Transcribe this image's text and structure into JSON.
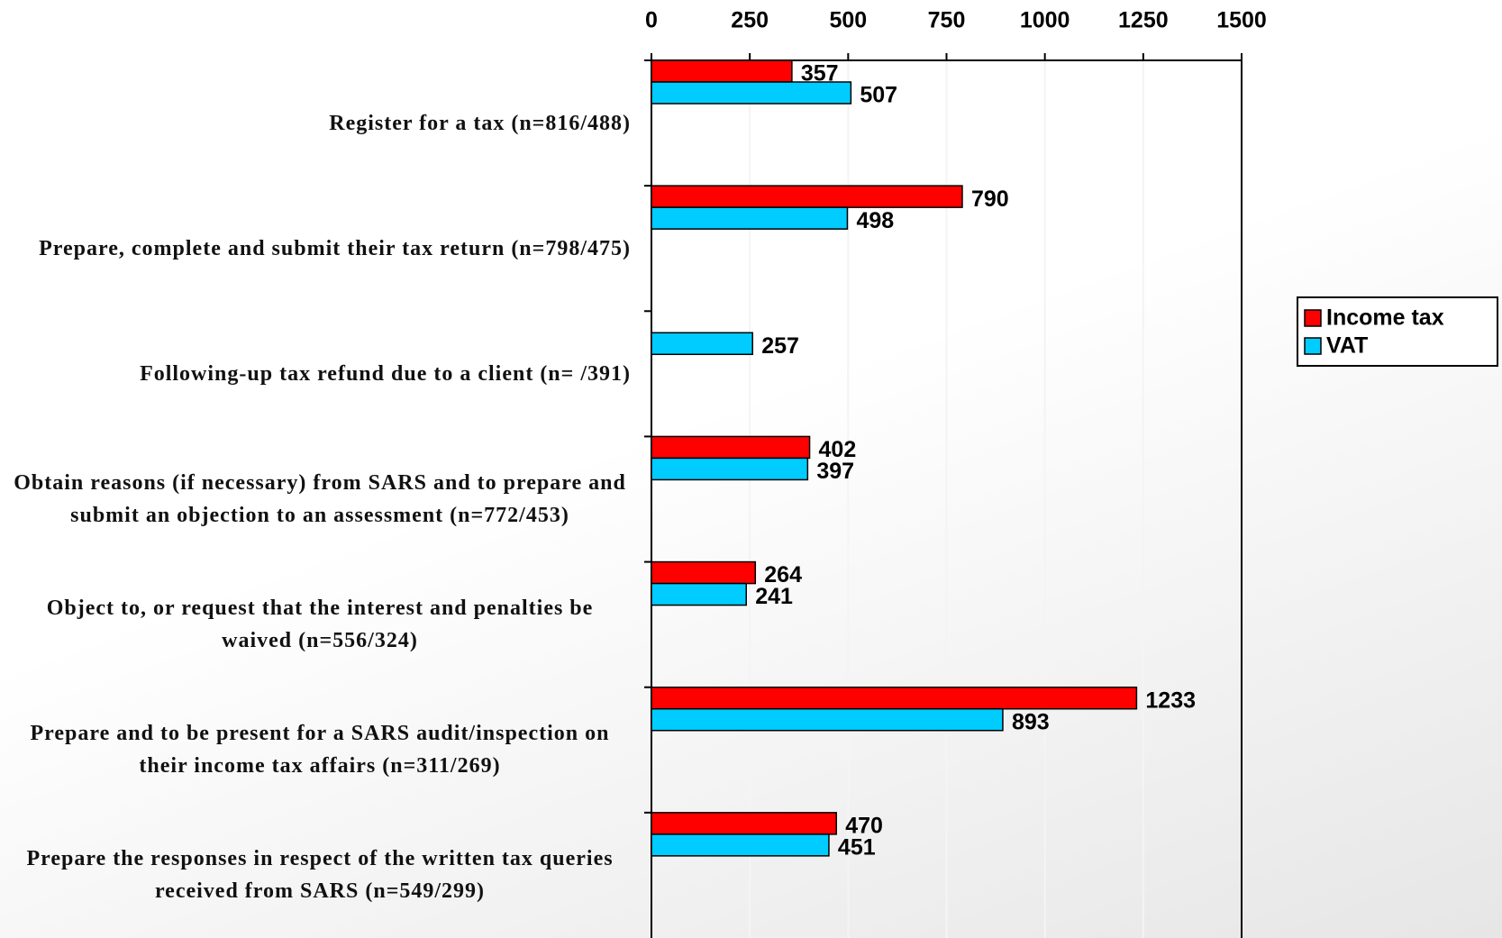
{
  "chart_data": {
    "type": "hbar",
    "categories": [
      "Register for a tax (n=816/488)",
      "Prepare, complete and submit their tax return (n=798/475)",
      "Following-up tax refund due to a client (n= /391)",
      "Obtain reasons (if necessary) from SARS and to prepare and submit an objection to an assessment (n=772/453)",
      "Object to, or request that the interest and penalties be waived (n=556/324)",
      "Prepare and to be present for a SARS audit/inspection on their income tax affairs (n=311/269)",
      "Prepare the responses in respect of the written tax queries received from SARS (n=549/299)"
    ],
    "series": [
      {
        "name": "Income tax",
        "color": "#ff0000",
        "values": [
          357,
          790,
          null,
          402,
          264,
          1233,
          470
        ]
      },
      {
        "name": "VAT",
        "color": "#00ccff",
        "values": [
          507,
          498,
          257,
          397,
          241,
          893,
          451
        ]
      }
    ],
    "xlim": [
      0,
      1500
    ],
    "xticks": [
      0,
      250,
      500,
      750,
      1000,
      1250,
      1500
    ],
    "grid": true,
    "legend": "right"
  }
}
